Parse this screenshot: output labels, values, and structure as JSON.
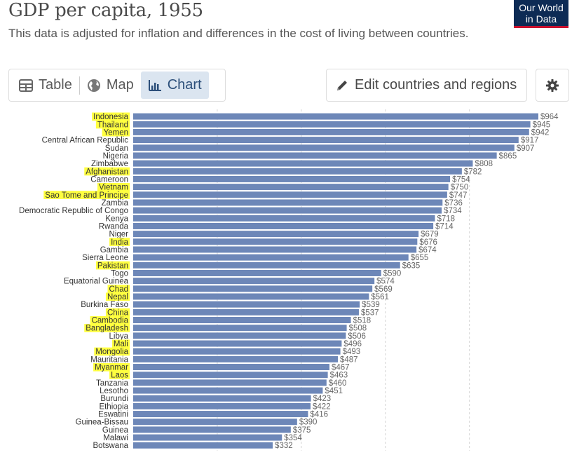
{
  "title": "GDP per capita, 1955",
  "subtitle": "This data is adjusted for inflation and differences in the cost of living between countries.",
  "logo": {
    "line1": "Our World",
    "line2": "in Data",
    "background": "#0d2b55",
    "accent": "#c8102e"
  },
  "tabs": [
    {
      "label": "Table",
      "icon": "table-icon",
      "active": false
    },
    {
      "label": "Map",
      "icon": "globe-icon",
      "active": false
    },
    {
      "label": "Chart",
      "icon": "bar-chart-icon",
      "active": true
    }
  ],
  "edit_button": {
    "label": "Edit countries and regions",
    "icon": "pencil-icon"
  },
  "settings_button": {
    "icon": "gear-icon"
  },
  "colors": {
    "bar": "#6d87b8",
    "highlight": "#ffff40",
    "active_tab": "#dbe5f0"
  },
  "chart_data": {
    "type": "bar",
    "orientation": "horizontal",
    "value_prefix": "$",
    "categories": [
      "Indonesia",
      "Thailand",
      "Yemen",
      "Central African Republic",
      "Sudan",
      "Nigeria",
      "Zimbabwe",
      "Afghanistan",
      "Cameroon",
      "Vietnam",
      "Sao Tome and Principe",
      "Zambia",
      "Democratic Republic of Congo",
      "Kenya",
      "Rwanda",
      "Niger",
      "India",
      "Gambia",
      "Sierra Leone",
      "Pakistan",
      "Togo",
      "Equatorial Guinea",
      "Chad",
      "Nepal",
      "Burkina Faso",
      "China",
      "Cambodia",
      "Bangladesh",
      "Libya",
      "Mali",
      "Mongolia",
      "Mauritania",
      "Myanmar",
      "Laos",
      "Tanzania",
      "Lesotho",
      "Burundi",
      "Ethiopia",
      "Eswatini",
      "Guinea-Bissau",
      "Guinea",
      "Malawi",
      "Botswana"
    ],
    "values": [
      964,
      945,
      942,
      917,
      907,
      865,
      808,
      782,
      754,
      750,
      747,
      736,
      734,
      718,
      714,
      679,
      676,
      674,
      655,
      635,
      590,
      574,
      569,
      561,
      539,
      537,
      518,
      508,
      506,
      496,
      493,
      487,
      467,
      463,
      460,
      451,
      423,
      422,
      416,
      390,
      375,
      354,
      332
    ],
    "highlighted": [
      "Indonesia",
      "Thailand",
      "Yemen",
      "Afghanistan",
      "Vietnam",
      "Sao Tome and Principe",
      "India",
      "Pakistan",
      "Chad",
      "Nepal",
      "China",
      "Cambodia",
      "Bangladesh",
      "Mali",
      "Mongolia",
      "Myanmar",
      "Laos"
    ],
    "xlim": [
      0,
      1000
    ],
    "gridlines": [
      200,
      400,
      600,
      800
    ],
    "grid": true,
    "legend": "none"
  }
}
